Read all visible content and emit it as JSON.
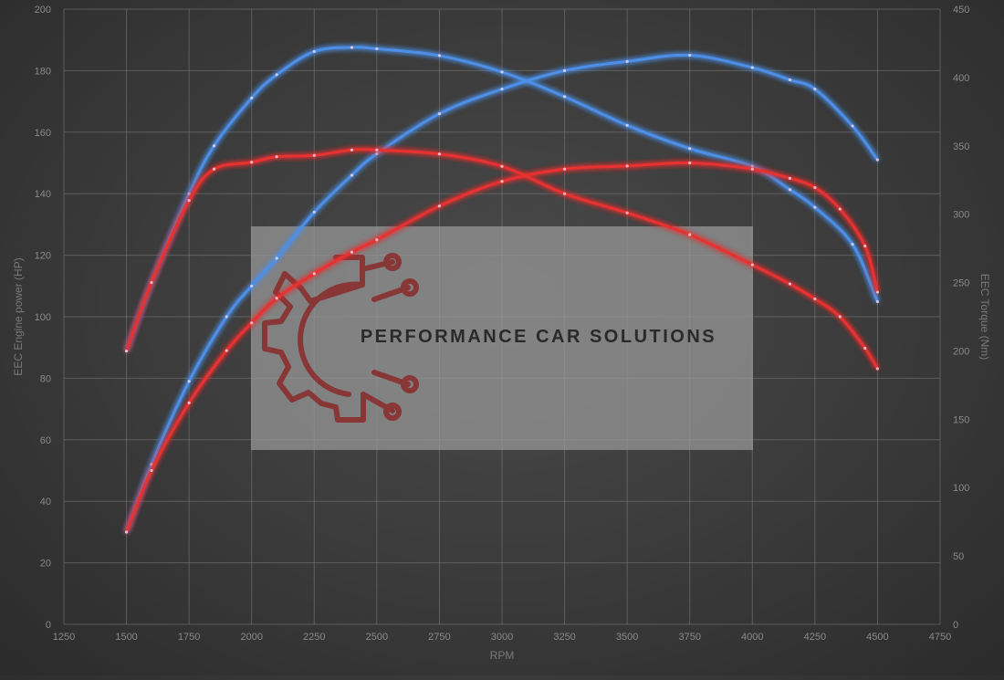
{
  "chart_data": {
    "type": "line",
    "xlabel": "RPM",
    "ylabel_left": "EEC Engine power (HP)",
    "ylabel_right": "EEC Torque (Nm)",
    "xlim": [
      1250,
      4750
    ],
    "ylim_left": [
      0,
      200
    ],
    "ylim_right": [
      0,
      450
    ],
    "x_ticks": [
      1250,
      1500,
      1750,
      2000,
      2250,
      2500,
      2750,
      3000,
      3250,
      3500,
      3750,
      4000,
      4250,
      4500,
      4750
    ],
    "y_ticks_left": [
      0,
      20,
      40,
      60,
      80,
      100,
      120,
      140,
      160,
      180,
      200
    ],
    "y_ticks_right": [
      0,
      50,
      100,
      150,
      200,
      250,
      300,
      350,
      400,
      450
    ],
    "grid": true,
    "series": [
      {
        "color": "#4d8fe6",
        "axis": "left",
        "x": [
          1500,
          1600,
          1750,
          1900,
          2000,
          2100,
          2250,
          2400,
          2500,
          2750,
          3000,
          3250,
          3500,
          3750,
          4000,
          4150,
          4250,
          4400,
          4500
        ],
        "values": [
          30,
          52,
          79,
          100,
          110,
          119,
          134,
          146,
          153,
          166,
          174,
          180,
          183,
          185,
          181,
          177,
          174,
          162,
          151
        ]
      },
      {
        "color": "#4d8fe6",
        "axis": "right",
        "x": [
          1500,
          1600,
          1750,
          1850,
          2000,
          2100,
          2250,
          2400,
          2500,
          2750,
          3000,
          3250,
          3500,
          3750,
          4000,
          4150,
          4250,
          4400,
          4500
        ],
        "values": [
          200,
          250,
          315,
          350,
          385,
          402,
          419,
          422,
          421,
          416,
          404,
          386,
          365,
          348,
          335,
          318,
          305,
          278,
          236
        ]
      },
      {
        "color": "#e83030",
        "axis": "left",
        "x": [
          1500,
          1600,
          1750,
          1900,
          2000,
          2100,
          2250,
          2400,
          2500,
          2750,
          3000,
          3250,
          3500,
          3750,
          4000,
          4150,
          4250,
          4350,
          4450,
          4500
        ],
        "values": [
          30,
          50,
          72,
          89,
          98,
          106,
          114,
          121,
          125,
          136,
          144,
          148,
          149,
          150,
          148,
          145,
          142,
          135,
          123,
          108
        ]
      },
      {
        "color": "#e83030",
        "axis": "right",
        "x": [
          1500,
          1600,
          1750,
          1850,
          2000,
          2100,
          2250,
          2400,
          2500,
          2750,
          3000,
          3250,
          3500,
          3750,
          4000,
          4150,
          4250,
          4350,
          4450,
          4500
        ],
        "values": [
          200,
          250,
          310,
          333,
          338,
          342,
          343,
          347,
          347,
          344,
          335,
          315,
          301,
          285,
          263,
          249,
          238,
          225,
          202,
          187
        ]
      }
    ]
  },
  "watermark": {
    "brand_text": "PERFORMANCE CAR SOLUTIONS",
    "logo_icon": "gear-circuit-icon",
    "logo_color": "#8a2a2a",
    "panel_color": "#9a9a9a"
  }
}
